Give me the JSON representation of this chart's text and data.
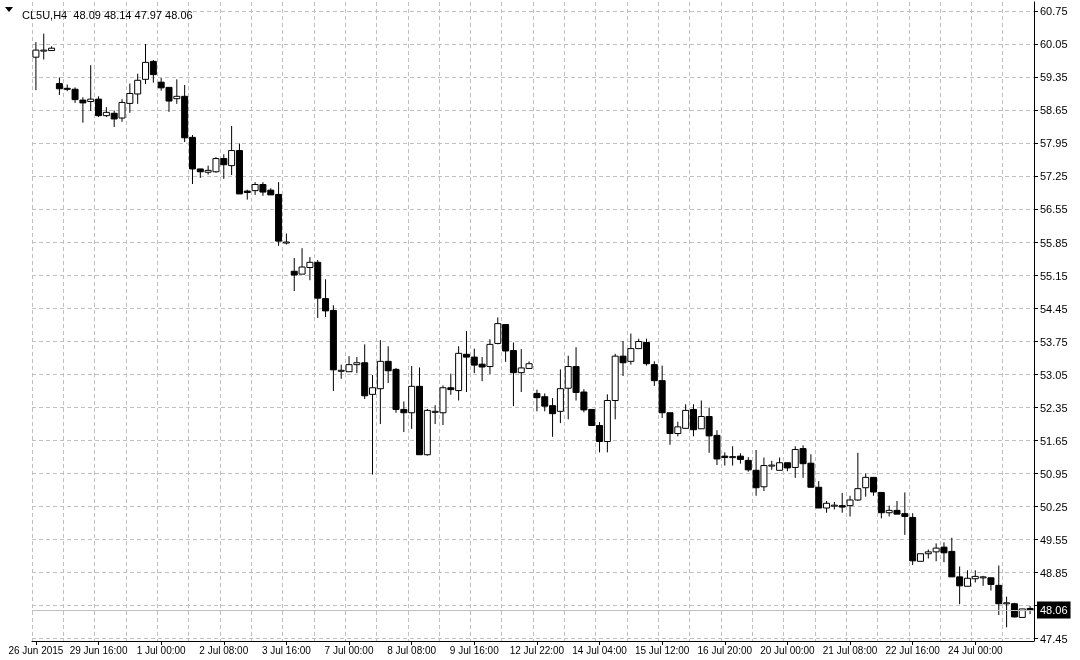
{
  "chart_data": {
    "type": "candlestick",
    "title": "CL5U,H4  48.09 48.14 47.97 48.06",
    "categories": [
      "26 Jun 2015",
      null,
      null,
      null,
      null,
      null,
      null,
      null,
      "29 Jun 16:00",
      null,
      null,
      null,
      null,
      null,
      null,
      null,
      "1 Jul 00:00",
      null,
      null,
      null,
      null,
      null,
      null,
      null,
      "2 Jul 08:00",
      null,
      null,
      null,
      null,
      null,
      null,
      null,
      "3 Jul 16:00",
      null,
      null,
      null,
      null,
      null,
      null,
      null,
      "7 Jul 00:00",
      null,
      null,
      null,
      null,
      null,
      null,
      null,
      "8 Jul 08:00",
      null,
      null,
      null,
      null,
      null,
      null,
      null,
      "9 Jul 16:00",
      null,
      null,
      null,
      null,
      null,
      null,
      null,
      "12 Jul 22:00",
      null,
      null,
      null,
      null,
      null,
      null,
      null,
      "14 Jul 04:00",
      null,
      null,
      null,
      null,
      null,
      null,
      null,
      "15 Jul 12:00",
      null,
      null,
      null,
      null,
      null,
      null,
      null,
      "16 Jul 20:00",
      null,
      null,
      null,
      null,
      null,
      null,
      null,
      "20 Jul 00:00",
      null,
      null,
      null,
      null,
      null,
      null,
      null,
      "21 Jul 08:00",
      null,
      null,
      null,
      null,
      null,
      null,
      null,
      "22 Jul 16:00",
      null,
      null,
      null,
      null,
      null,
      null,
      null,
      "24 Jul 00:00",
      null,
      null,
      null,
      null,
      null,
      null,
      null
    ],
    "ohlc": [
      [
        59.78,
        60.1,
        59.08,
        59.93
      ],
      [
        59.93,
        60.28,
        59.73,
        59.93
      ],
      [
        59.92,
        60.01,
        59.92,
        59.97
      ],
      [
        59.22,
        59.35,
        58.98,
        59.11
      ],
      [
        59.12,
        59.2,
        59.06,
        59.1
      ],
      [
        59.1,
        59.14,
        58.81,
        58.88
      ],
      [
        58.87,
        58.93,
        58.39,
        58.81
      ],
      [
        58.84,
        59.61,
        58.64,
        58.89
      ],
      [
        58.89,
        58.95,
        58.51,
        58.54
      ],
      [
        58.54,
        58.72,
        58.51,
        58.61
      ],
      [
        58.59,
        58.65,
        58.3,
        58.47
      ],
      [
        58.49,
        58.89,
        58.41,
        58.82
      ],
      [
        58.8,
        59.22,
        58.6,
        59.01
      ],
      [
        59.0,
        59.43,
        58.79,
        59.29
      ],
      [
        59.31,
        60.06,
        59.21,
        59.67
      ],
      [
        59.69,
        59.72,
        59.24,
        59.41
      ],
      [
        59.25,
        59.34,
        59.07,
        59.13
      ],
      [
        59.14,
        59.14,
        58.62,
        58.85
      ],
      [
        58.9,
        59.31,
        58.79,
        58.95
      ],
      [
        58.95,
        59.19,
        57.98,
        58.07
      ],
      [
        58.08,
        58.13,
        57.09,
        57.41
      ],
      [
        57.41,
        57.41,
        57.22,
        57.35
      ],
      [
        57.34,
        57.48,
        57.29,
        57.38
      ],
      [
        57.35,
        57.66,
        57.33,
        57.63
      ],
      [
        57.63,
        57.72,
        57.2,
        57.5
      ],
      [
        57.48,
        58.32,
        57.28,
        57.8
      ],
      [
        57.8,
        57.95,
        56.88,
        56.88
      ],
      [
        56.94,
        56.97,
        56.76,
        56.91
      ],
      [
        56.95,
        57.13,
        56.86,
        57.08
      ],
      [
        57.08,
        57.13,
        56.84,
        56.92
      ],
      [
        56.96,
        57.0,
        56.86,
        56.86
      ],
      [
        56.87,
        57.13,
        55.78,
        55.88
      ],
      [
        55.86,
        56.04,
        55.81,
        55.86
      ],
      [
        55.24,
        55.52,
        54.82,
        55.16
      ],
      [
        55.18,
        55.73,
        55.18,
        55.33
      ],
      [
        55.32,
        55.54,
        55.05,
        55.43
      ],
      [
        55.43,
        55.48,
        54.25,
        54.67
      ],
      [
        54.66,
        55.07,
        54.27,
        54.4
      ],
      [
        54.41,
        54.52,
        52.7,
        53.15
      ],
      [
        53.14,
        53.26,
        52.96,
        53.14
      ],
      [
        53.11,
        53.44,
        53.11,
        53.26
      ],
      [
        53.26,
        53.42,
        53.08,
        53.3
      ],
      [
        53.3,
        53.69,
        52.53,
        52.6
      ],
      [
        52.63,
        53.04,
        50.93,
        52.77
      ],
      [
        52.75,
        53.78,
        52.0,
        53.33
      ],
      [
        53.33,
        53.65,
        52.87,
        53.13
      ],
      [
        53.16,
        53.19,
        52.24,
        52.31
      ],
      [
        52.31,
        52.48,
        51.83,
        52.24
      ],
      [
        52.24,
        53.23,
        51.9,
        52.8
      ],
      [
        52.8,
        53.2,
        51.35,
        51.35
      ],
      [
        51.35,
        52.32,
        51.33,
        52.29
      ],
      [
        52.27,
        52.4,
        52.0,
        52.27
      ],
      [
        52.24,
        52.82,
        51.98,
        52.77
      ],
      [
        52.77,
        53.07,
        52.62,
        52.73
      ],
      [
        52.71,
        53.65,
        52.5,
        53.5
      ],
      [
        53.48,
        53.97,
        52.68,
        53.42
      ],
      [
        53.42,
        53.6,
        53.08,
        53.25
      ],
      [
        53.27,
        53.42,
        52.91,
        53.21
      ],
      [
        53.22,
        53.8,
        53.06,
        53.69
      ],
      [
        53.71,
        54.26,
        53.69,
        54.13
      ],
      [
        54.11,
        54.11,
        53.32,
        53.55
      ],
      [
        53.56,
        53.73,
        52.38,
        53.09
      ],
      [
        53.09,
        53.59,
        52.68,
        53.19
      ],
      [
        53.18,
        53.33,
        53.18,
        53.28
      ],
      [
        52.65,
        52.73,
        52.27,
        52.56
      ],
      [
        52.58,
        52.65,
        52.27,
        52.38
      ],
      [
        52.39,
        52.55,
        51.73,
        52.22
      ],
      [
        52.27,
        53.16,
        52.02,
        52.75
      ],
      [
        52.76,
        53.45,
        52.1,
        53.22
      ],
      [
        53.22,
        53.63,
        52.5,
        52.67
      ],
      [
        52.68,
        52.74,
        52.25,
        52.3
      ],
      [
        52.31,
        52.31,
        51.96,
        51.97
      ],
      [
        51.97,
        52.04,
        51.4,
        51.63
      ],
      [
        51.63,
        52.63,
        51.4,
        52.5
      ],
      [
        52.5,
        53.49,
        52.1,
        53.44
      ],
      [
        53.44,
        53.76,
        53.02,
        53.3
      ],
      [
        53.33,
        53.92,
        53.26,
        53.6
      ],
      [
        53.6,
        53.81,
        53.6,
        53.75
      ],
      [
        53.73,
        53.81,
        53.24,
        53.28
      ],
      [
        53.26,
        53.33,
        52.81,
        52.92
      ],
      [
        52.92,
        53.24,
        52.13,
        52.24
      ],
      [
        52.24,
        52.24,
        51.56,
        51.8
      ],
      [
        51.8,
        52.05,
        51.74,
        51.94
      ],
      [
        51.91,
        52.42,
        51.9,
        52.29
      ],
      [
        52.31,
        52.42,
        51.74,
        51.88
      ],
      [
        51.9,
        52.5,
        51.9,
        52.16
      ],
      [
        52.16,
        52.35,
        51.39,
        51.75
      ],
      [
        51.76,
        51.87,
        51.13,
        51.26
      ],
      [
        51.32,
        51.4,
        51.12,
        51.29
      ],
      [
        51.31,
        51.53,
        51.12,
        51.31
      ],
      [
        51.32,
        51.38,
        51.16,
        51.25
      ],
      [
        51.23,
        51.3,
        50.99,
        51.03
      ],
      [
        51.02,
        51.45,
        50.48,
        50.65
      ],
      [
        50.67,
        51.29,
        50.58,
        51.12
      ],
      [
        51.13,
        51.22,
        51.03,
        51.13
      ],
      [
        51.02,
        51.29,
        51.02,
        51.18
      ],
      [
        51.18,
        51.18,
        51.0,
        51.07
      ],
      [
        51.08,
        51.53,
        50.86,
        51.46
      ],
      [
        51.48,
        51.55,
        50.86,
        51.16
      ],
      [
        51.17,
        51.36,
        50.66,
        50.66
      ],
      [
        50.66,
        50.79,
        50.22,
        50.22
      ],
      [
        50.22,
        50.37,
        50.12,
        50.32
      ],
      [
        50.28,
        50.35,
        50.19,
        50.28
      ],
      [
        50.27,
        50.54,
        50.12,
        50.24
      ],
      [
        50.27,
        50.48,
        50.04,
        50.39
      ],
      [
        50.39,
        51.39,
        50.37,
        50.63
      ],
      [
        50.65,
        50.95,
        50.46,
        50.87
      ],
      [
        50.87,
        50.87,
        50.48,
        50.56
      ],
      [
        50.55,
        50.55,
        50.0,
        50.12
      ],
      [
        50.12,
        50.27,
        50.04,
        50.17
      ],
      [
        50.17,
        50.37,
        50.09,
        50.09
      ],
      [
        50.1,
        50.55,
        49.65,
        50.04
      ],
      [
        50.02,
        50.11,
        49.01,
        49.1
      ],
      [
        49.09,
        49.25,
        49.09,
        49.25
      ],
      [
        49.25,
        49.34,
        49.15,
        49.29
      ],
      [
        49.29,
        49.47,
        49.09,
        49.37
      ],
      [
        49.39,
        49.49,
        49.07,
        49.27
      ],
      [
        49.3,
        49.59,
        48.76,
        48.76
      ],
      [
        48.76,
        48.98,
        48.18,
        48.57
      ],
      [
        48.56,
        48.9,
        48.56,
        48.73
      ],
      [
        48.72,
        48.9,
        48.64,
        48.77
      ],
      [
        48.76,
        48.78,
        48.57,
        48.76
      ],
      [
        48.74,
        48.74,
        48.47,
        48.6
      ],
      [
        48.58,
        49.0,
        47.95,
        48.19
      ],
      [
        48.21,
        48.34,
        47.69,
        48.21
      ],
      [
        48.19,
        48.21,
        47.9,
        47.91
      ],
      [
        47.9,
        48.08,
        47.9,
        48.08
      ],
      [
        48.09,
        48.14,
        47.97,
        48.06
      ]
    ],
    "color": "#000000",
    "ylim": [
      47.4,
      60.95
    ],
    "yticks": [
      47.45,
      {
        "value": 48.15,
        "label": null
      },
      48.85,
      49.55,
      50.25,
      50.95,
      51.65,
      52.35,
      53.05,
      53.75,
      54.45,
      55.15,
      55.85,
      56.55,
      57.25,
      57.95,
      58.65,
      59.35,
      60.05,
      60.75
    ],
    "grid": true,
    "ref_lines": [
      {
        "axis": "y",
        "value": 48.06,
        "label": "48.06",
        "color": "#c0c0c0"
      }
    ]
  }
}
